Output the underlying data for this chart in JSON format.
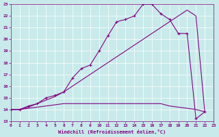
{
  "xlabel": "Windchill (Refroidissement éolien,°C)",
  "background_color": "#c8eaea",
  "line_color": "#800080",
  "xlim": [
    0,
    23
  ],
  "ylim": [
    13,
    23
  ],
  "yticks": [
    13,
    14,
    15,
    16,
    17,
    18,
    19,
    20,
    21,
    22,
    23
  ],
  "xticks": [
    0,
    1,
    2,
    3,
    4,
    5,
    6,
    7,
    8,
    9,
    10,
    11,
    12,
    13,
    14,
    15,
    16,
    17,
    18,
    19,
    20,
    21,
    22,
    23
  ],
  "line1_x": [
    0,
    1,
    2,
    3,
    4,
    5,
    6,
    7,
    8,
    9,
    10,
    11,
    12,
    13,
    14,
    15,
    16,
    17,
    18,
    19,
    20,
    21,
    22
  ],
  "line1_y": [
    14.0,
    14.0,
    14.3,
    14.5,
    15.0,
    15.2,
    15.5,
    16.7,
    17.5,
    17.8,
    19.0,
    20.3,
    21.5,
    21.7,
    22.0,
    23.0,
    23.0,
    22.2,
    21.7,
    20.5,
    20.5,
    13.2,
    13.8
  ],
  "line2_x": [
    0,
    1,
    2,
    3,
    4,
    5,
    6,
    7,
    8,
    9,
    10,
    11,
    12,
    13,
    14,
    15,
    16,
    17,
    18,
    19,
    20,
    21,
    22
  ],
  "line2_y": [
    14.0,
    14.0,
    14.2,
    14.5,
    14.8,
    15.1,
    15.5,
    16.0,
    16.5,
    17.0,
    17.5,
    18.0,
    18.5,
    19.0,
    19.5,
    20.0,
    20.5,
    21.0,
    21.5,
    22.0,
    22.5,
    22.0,
    13.8
  ],
  "line3_x": [
    0,
    1,
    2,
    3,
    4,
    5,
    6,
    7,
    8,
    9,
    10,
    11,
    12,
    13,
    14,
    15,
    16,
    17,
    18,
    19,
    20,
    21,
    22
  ],
  "line3_y": [
    14.0,
    14.0,
    14.1,
    14.2,
    14.3,
    14.4,
    14.5,
    14.5,
    14.5,
    14.5,
    14.5,
    14.5,
    14.5,
    14.5,
    14.5,
    14.5,
    14.5,
    14.5,
    14.3,
    14.2,
    14.1,
    14.0,
    13.8
  ]
}
